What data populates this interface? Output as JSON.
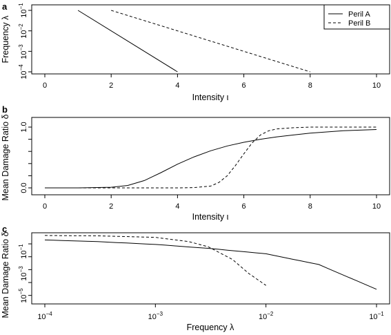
{
  "chart_data": [
    {
      "panel": "a",
      "type": "line",
      "xlabel": "Intensity ι",
      "ylabel": "Frequency λ",
      "xlim": [
        0,
        10
      ],
      "ylim_log10": [
        -4,
        -1
      ],
      "y_scale": "log",
      "x_ticks": [
        "0",
        "2",
        "4",
        "6",
        "8",
        "10"
      ],
      "legend_position": "top-right",
      "series": [
        {
          "name": "Peril A",
          "line_style": "solid",
          "x": [
            1,
            4
          ],
          "y": [
            0.1,
            0.0001
          ]
        },
        {
          "name": "Peril B",
          "line_style": "dashed",
          "x": [
            2,
            8
          ],
          "y": [
            0.1,
            0.0001
          ]
        }
      ]
    },
    {
      "panel": "b",
      "type": "line",
      "xlabel": "Intensity ι",
      "ylabel": "Mean Damage Ratio δ",
      "xlim": [
        0,
        10
      ],
      "ylim": [
        0,
        1
      ],
      "x_ticks": [
        "0",
        "2",
        "4",
        "6",
        "8",
        "10"
      ],
      "y_ticks": [
        "0.0",
        "1.0"
      ],
      "series": [
        {
          "line_style": "solid",
          "x": [
            0,
            1,
            2,
            2.5,
            3,
            3.5,
            4,
            4.5,
            5,
            5.5,
            6,
            6.5,
            7,
            7.5,
            8,
            8.5,
            9,
            9.5,
            10
          ],
          "y": [
            0.0,
            0.0,
            0.01,
            0.04,
            0.12,
            0.25,
            0.39,
            0.51,
            0.61,
            0.69,
            0.75,
            0.8,
            0.84,
            0.87,
            0.9,
            0.92,
            0.94,
            0.95,
            0.96
          ]
        },
        {
          "line_style": "dashed",
          "x": [
            0,
            4,
            4.5,
            5,
            5.25,
            5.5,
            5.75,
            6,
            6.25,
            6.5,
            6.75,
            7,
            7.5,
            8,
            10
          ],
          "y": [
            0.0,
            0.0,
            0.005,
            0.03,
            0.09,
            0.2,
            0.37,
            0.56,
            0.74,
            0.87,
            0.94,
            0.97,
            0.99,
            1.0,
            1.0
          ]
        }
      ]
    },
    {
      "panel": "c",
      "type": "line",
      "xlabel": "Frequency λ",
      "ylabel": "Mean Damage Ratio δ",
      "x_scale": "log",
      "y_scale": "log",
      "xlim_log10": [
        -4,
        -1
      ],
      "ylim_log10": [
        -5.5,
        -0.3
      ],
      "x_ticks": [
        "10⁻⁴",
        "10⁻³",
        "10⁻²",
        "10⁻¹"
      ],
      "series": [
        {
          "line_style": "solid",
          "x": [
            0.0001,
            0.0003,
            0.001,
            0.003,
            0.01,
            0.03,
            0.1
          ],
          "y": [
            0.2,
            0.15,
            0.09,
            0.045,
            0.017,
            0.0025,
            3e-05
          ]
        },
        {
          "line_style": "dashed",
          "x": [
            0.0001,
            0.0003,
            0.001,
            0.002,
            0.003,
            0.005,
            0.007,
            0.01
          ],
          "y": [
            0.45,
            0.42,
            0.32,
            0.15,
            0.06,
            0.006,
            0.0005,
            6e-05
          ]
        }
      ]
    }
  ],
  "panels": [
    {
      "letter": "a",
      "xlabel": "Intensity ι",
      "ylabel": "Frequency λ",
      "x_ticks": [
        "0",
        "2",
        "4",
        "6",
        "8",
        "10"
      ],
      "legend": [
        "Peril A",
        "Peril B"
      ]
    },
    {
      "letter": "b",
      "xlabel": "Intensity ι",
      "ylabel": "Mean Damage Ratio δ",
      "x_ticks": [
        "0",
        "2",
        "4",
        "6",
        "8",
        "10"
      ],
      "y_ticks": [
        "0.0",
        "1.0"
      ]
    },
    {
      "letter": "c",
      "xlabel": "Frequency λ",
      "ylabel": "Mean Damage Ratio δ",
      "x_ticks": [
        "10",
        "10",
        "10",
        "10"
      ],
      "x_tick_exponents": [
        "−4",
        "−3",
        "−2",
        "−1"
      ]
    }
  ],
  "panel_a_y_ticks": [
    "10",
    "10",
    "10",
    "10"
  ],
  "panel_a_y_tick_exponents": [
    "−1",
    "−2",
    "−3",
    "−4"
  ],
  "panel_c_y_ticks": [
    "10",
    "10",
    "10"
  ],
  "panel_c_y_tick_exponents": [
    "−1",
    "−3",
    "−5"
  ]
}
